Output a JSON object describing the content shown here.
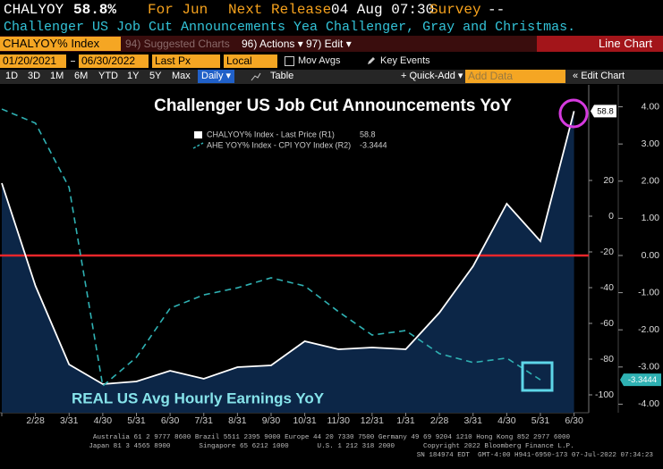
{
  "header": {
    "ticker": "CHALYOY",
    "value": "58.8%",
    "period": "For Jun",
    "next_release_label": "Next Release",
    "next_release": "04 Aug 07:30",
    "survey_label": "Survey",
    "survey": "--",
    "description": "Challenger US Job Cut Announcements Yea Challenger, Gray and Christmas."
  },
  "toolbar": {
    "security": "CHALYOY% Index",
    "suggested_charts": "94) Suggested Charts",
    "actions": "96) Actions",
    "edit": "97) Edit",
    "view": "Line Chart"
  },
  "controls": {
    "start_date": "01/20/2021",
    "end_date": "06/30/2022",
    "field": "Last Px",
    "currency": "Local CCY",
    "mov_avgs": "Mov Avgs",
    "key_events": "Key Events",
    "periods": [
      "1D",
      "3D",
      "1M",
      "6M",
      "YTD",
      "1Y",
      "5Y",
      "Max"
    ],
    "frequency": "Daily",
    "table": "Table",
    "quick_add": "Quick-Add",
    "add_data": "Add Data",
    "edit_chart": "Edit Chart"
  },
  "chart_data": {
    "type": "line",
    "title": "Challenger US Job Cut Announcements YoY",
    "annotation": "REAL US Avg Hourly Earnings YoY",
    "categories": [
      null,
      "2/28",
      "3/31",
      "4/30",
      "5/31",
      "6/30",
      "7/31",
      "8/31",
      "9/30",
      "10/31",
      "11/30",
      "12/31",
      "1/31",
      "2/28",
      "3/31",
      "4/30",
      "5/31",
      "6/30"
    ],
    "series": [
      {
        "name": "CHALYOY% Index - Last Price (R1)",
        "color": "#ffffff",
        "area_color": "#0c2647",
        "dash": false,
        "axis": "y",
        "values": [
          18.5,
          -39,
          -83,
          -94,
          -92.5,
          -86.5,
          -91,
          -84.5,
          -83.5,
          -70,
          -74.5,
          -73.5,
          -74.5,
          -54,
          -28,
          7,
          -14,
          58.8
        ]
      },
      {
        "name": "AHE YOY% Index - CPI YOY Index (R2)",
        "color": "#2fb1b3",
        "dash": true,
        "axis": "y2",
        "values": [
          3.94,
          3.56,
          1.83,
          -3.51,
          -2.74,
          -1.42,
          -1.06,
          -0.87,
          -0.6,
          -0.82,
          -1.51,
          -2.14,
          -2.02,
          -2.64,
          -2.88,
          -2.76,
          -3.3444,
          null
        ]
      }
    ],
    "ylim": [
      -110,
      71
    ],
    "yticks": [
      20,
      0,
      -20,
      -40,
      -60,
      -80,
      -100
    ],
    "y2lim": [
      -4.23,
      4.47
    ],
    "y2ticks": [
      {
        "value": 4,
        "label": "4.00"
      },
      {
        "value": 3,
        "label": "3.00"
      },
      {
        "value": 2,
        "label": "2.00"
      },
      {
        "value": 1,
        "label": "1.00"
      },
      {
        "value": 0,
        "label": "0.00"
      },
      {
        "value": -1,
        "label": "-1.00"
      },
      {
        "value": -2,
        "label": "-2.00"
      },
      {
        "value": -3,
        "label": "-3.00"
      },
      {
        "value": -4,
        "label": "-4.00"
      }
    ],
    "reference_line": {
      "axis": "y2",
      "value": 0,
      "color": "#e8262b"
    }
  },
  "footer": {
    "lines": [
      "Australia 61 2 9777 8600 Brazil 5511 2395 9000 Europe 44 20 7330 7500 Germany 49 69 9204 1210 Hong Kong 852 2977 6000",
      "Japan 81 3 4565 8900       Singapore 65 6212 1000       U.S. 1 212 318 2000       Copyright 2022 Bloomberg Finance L.P.",
      "SN 184974 EDT  GMT-4:00 H941-6950-173 07-Jul-2022 07:34:23"
    ]
  }
}
